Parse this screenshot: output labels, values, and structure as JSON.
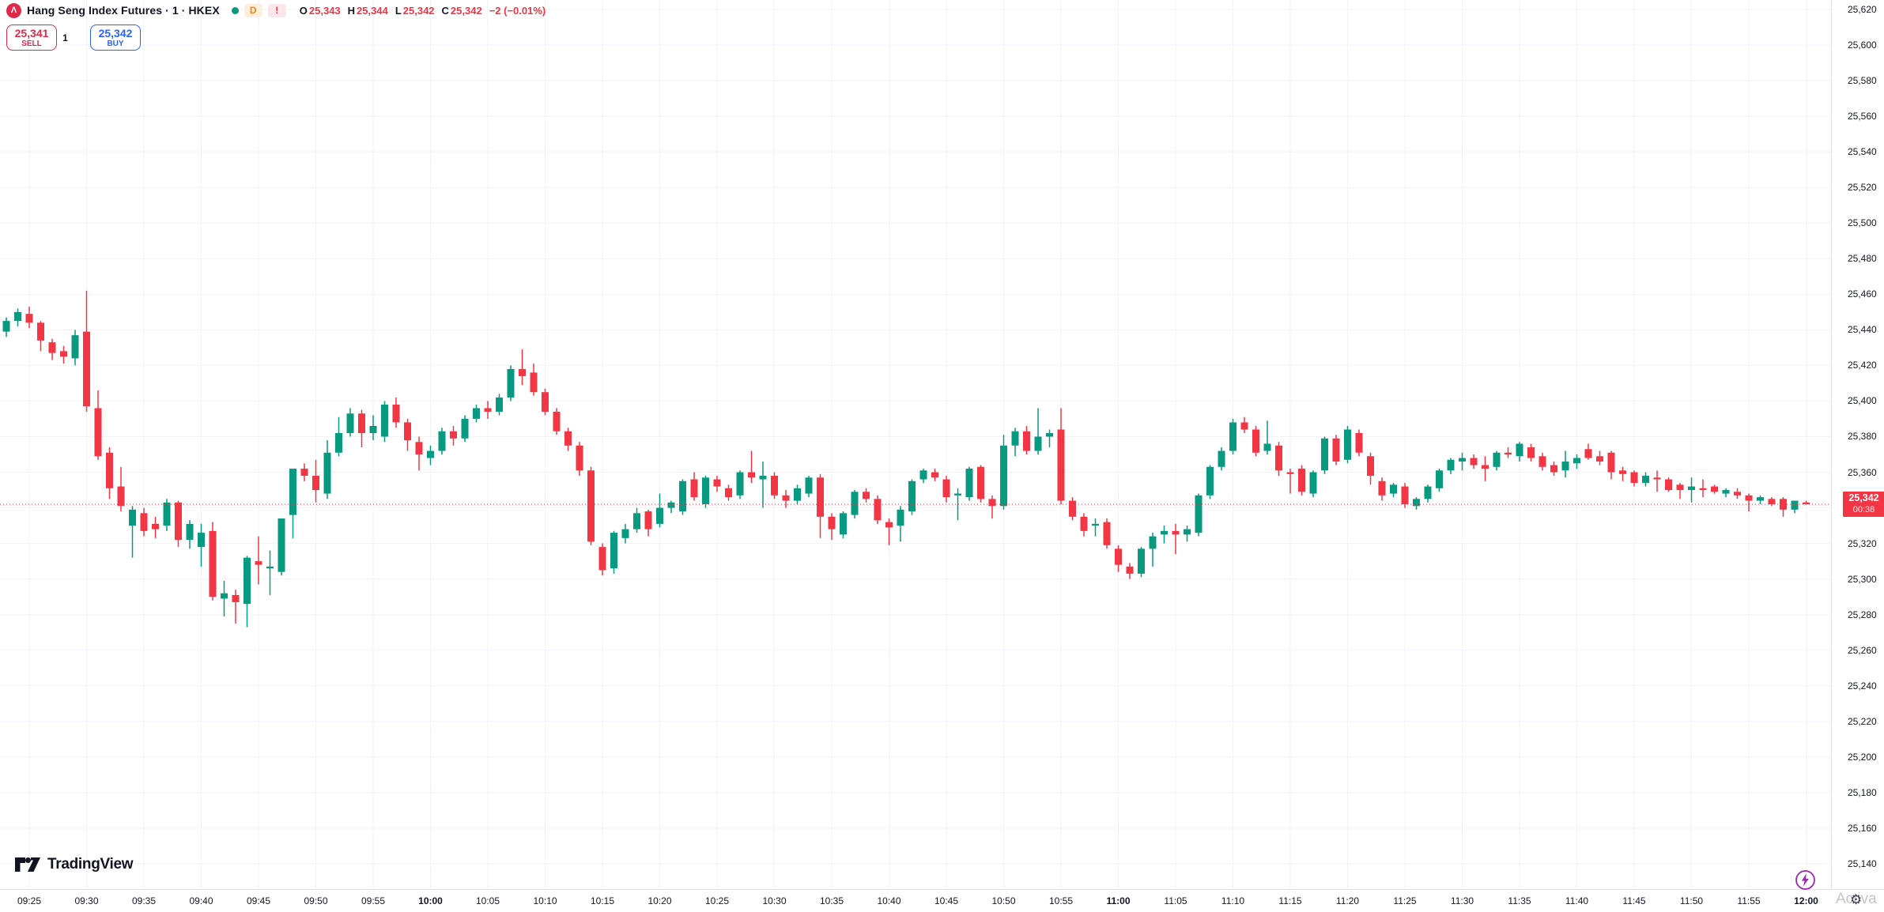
{
  "header": {
    "broker_logo_letter": "Λ",
    "symbol_title": "Hang Seng Index Futures · 1 · HKEX",
    "delayed_badge": "D",
    "alert_badge": "!",
    "ohlc": {
      "o_label": "O",
      "o": "25,343",
      "h_label": "H",
      "h": "25,344",
      "l_label": "L",
      "l": "25,342",
      "c_label": "C",
      "c": "25,342",
      "change": "−2 (−0.01%)"
    },
    "trade": {
      "sell_price": "25,341",
      "sell_label": "SELL",
      "qty": "1",
      "buy_price": "25,342",
      "buy_label": "BUY"
    }
  },
  "footer": {
    "logo_text": "TradingView",
    "activate_text": "Activa"
  },
  "price_axis": {
    "labels": [
      "25,620",
      "25,600",
      "25,580",
      "25,560",
      "25,540",
      "25,520",
      "25,500",
      "25,480",
      "25,460",
      "25,440",
      "25,420",
      "25,400",
      "25,380",
      "25,360",
      "25,340",
      "25,320",
      "25,300",
      "25,280",
      "25,260",
      "25,240",
      "25,220",
      "25,200",
      "25,180",
      "25,160",
      "25,140"
    ],
    "current_price": "25,342",
    "countdown": "00:38"
  },
  "time_axis": {
    "labels": [
      {
        "t": "09:25",
        "bold": false
      },
      {
        "t": "09:30",
        "bold": false
      },
      {
        "t": "09:35",
        "bold": false
      },
      {
        "t": "09:40",
        "bold": false
      },
      {
        "t": "09:45",
        "bold": false
      },
      {
        "t": "09:50",
        "bold": false
      },
      {
        "t": "09:55",
        "bold": false
      },
      {
        "t": "10:00",
        "bold": true
      },
      {
        "t": "10:05",
        "bold": false
      },
      {
        "t": "10:10",
        "bold": false
      },
      {
        "t": "10:15",
        "bold": false
      },
      {
        "t": "10:20",
        "bold": false
      },
      {
        "t": "10:25",
        "bold": false
      },
      {
        "t": "10:30",
        "bold": false
      },
      {
        "t": "10:35",
        "bold": false
      },
      {
        "t": "10:40",
        "bold": false
      },
      {
        "t": "10:45",
        "bold": false
      },
      {
        "t": "10:50",
        "bold": false
      },
      {
        "t": "10:55",
        "bold": false
      },
      {
        "t": "11:00",
        "bold": true
      },
      {
        "t": "11:05",
        "bold": false
      },
      {
        "t": "11:10",
        "bold": false
      },
      {
        "t": "11:15",
        "bold": false
      },
      {
        "t": "11:20",
        "bold": false
      },
      {
        "t": "11:25",
        "bold": false
      },
      {
        "t": "11:30",
        "bold": false
      },
      {
        "t": "11:35",
        "bold": false
      },
      {
        "t": "11:40",
        "bold": false
      },
      {
        "t": "11:45",
        "bold": false
      },
      {
        "t": "11:50",
        "bold": false
      },
      {
        "t": "11:55",
        "bold": false
      },
      {
        "t": "12:00",
        "bold": true
      }
    ]
  },
  "chart_data": {
    "type": "candlestick",
    "title": "Hang Seng Index Futures",
    "exchange": "HKEX",
    "interval": "1",
    "up_color": "#089981",
    "down_color": "#F23645",
    "grid": true,
    "y_axis": {
      "min": 25140,
      "max": 25620,
      "tick_step": 20
    },
    "x_start_time": "09:23",
    "x_end_time": "12:00",
    "current_price": 25342,
    "current_bar": {
      "open": 25343,
      "high": 25344,
      "low": 25342,
      "close": 25342,
      "change": -2,
      "change_pct": -0.01
    },
    "candles": [
      [
        "09:23",
        25439,
        25447,
        25436,
        25445
      ],
      [
        "09:24",
        25445,
        25452,
        25442,
        25450
      ],
      [
        "09:25",
        25449,
        25453,
        25441,
        25444
      ],
      [
        "09:26",
        25444,
        25445,
        25428,
        25434
      ],
      [
        "09:27",
        25433,
        25435,
        25423,
        25427
      ],
      [
        "09:28",
        25428,
        25431,
        25421,
        25425
      ],
      [
        "09:29",
        25424,
        25440,
        25420,
        25437
      ],
      [
        "09:30",
        25439,
        25462,
        25394,
        25397
      ],
      [
        "09:31",
        25396,
        25406,
        25367,
        25369
      ],
      [
        "09:32",
        25371,
        25374,
        25345,
        25351
      ],
      [
        "09:33",
        25352,
        25363,
        25338,
        25341
      ],
      [
        "09:34",
        25330,
        25341,
        25312,
        25339
      ],
      [
        "09:35",
        25337,
        25340,
        25324,
        25327
      ],
      [
        "09:36",
        25331,
        25335,
        25323,
        25328
      ],
      [
        "09:37",
        25330,
        25345,
        25327,
        25343
      ],
      [
        "09:38",
        25343,
        25344,
        25318,
        25322
      ],
      [
        "09:39",
        25322,
        25333,
        25317,
        25331
      ],
      [
        "09:40",
        25318,
        25331,
        25307,
        25326
      ],
      [
        "09:41",
        25327,
        25332,
        25288,
        25290
      ],
      [
        "09:42",
        25289,
        25299,
        25279,
        25292
      ],
      [
        "09:43",
        25291,
        25294,
        25275,
        25287
      ],
      [
        "09:44",
        25286,
        25313,
        25273,
        25312
      ],
      [
        "09:45",
        25310,
        25324,
        25297,
        25308
      ],
      [
        "09:46",
        25306,
        25316,
        25291,
        25307
      ],
      [
        "09:47",
        25304,
        25334,
        25302,
        25334
      ],
      [
        "09:48",
        25336,
        25362,
        25323,
        25362
      ],
      [
        "09:49",
        25362,
        25365,
        25355,
        25358
      ],
      [
        "09:50",
        25358,
        25367,
        25343,
        25350
      ],
      [
        "09:51",
        25348,
        25378,
        25345,
        25371
      ],
      [
        "09:52",
        25371,
        25391,
        25369,
        25382
      ],
      [
        "09:53",
        25382,
        25396,
        25380,
        25393
      ],
      [
        "09:54",
        25393,
        25395,
        25374,
        25382
      ],
      [
        "09:55",
        25382,
        25392,
        25378,
        25386
      ],
      [
        "09:56",
        25380,
        25400,
        25377,
        25398
      ],
      [
        "09:57",
        25398,
        25402,
        25385,
        25388
      ],
      [
        "09:58",
        25388,
        25390,
        25372,
        25378
      ],
      [
        "09:59",
        25377,
        25380,
        25361,
        25370
      ],
      [
        "10:00",
        25368,
        25375,
        25364,
        25372
      ],
      [
        "10:01",
        25372,
        25385,
        25370,
        25383
      ],
      [
        "10:02",
        25383,
        25386,
        25375,
        25379
      ],
      [
        "10:03",
        25379,
        25392,
        25377,
        25390
      ],
      [
        "10:04",
        25390,
        25398,
        25388,
        25396
      ],
      [
        "10:05",
        25396,
        25400,
        25390,
        25394
      ],
      [
        "10:06",
        25394,
        25404,
        25392,
        25402
      ],
      [
        "10:07",
        25402,
        25420,
        25400,
        25418
      ],
      [
        "10:08",
        25418,
        25429,
        25409,
        25414
      ],
      [
        "10:09",
        25416,
        25421,
        25403,
        25405
      ],
      [
        "10:10",
        25405,
        25407,
        25392,
        25394
      ],
      [
        "10:11",
        25394,
        25396,
        25381,
        25383
      ],
      [
        "10:12",
        25383,
        25385,
        25372,
        25375
      ],
      [
        "10:13",
        25375,
        25377,
        25358,
        25361
      ],
      [
        "10:14",
        25361,
        25363,
        25319,
        25321
      ],
      [
        "10:15",
        25318,
        25320,
        25302,
        25305
      ],
      [
        "10:16",
        25306,
        25327,
        25303,
        25326
      ],
      [
        "10:17",
        25323,
        25331,
        25320,
        25328
      ],
      [
        "10:18",
        25328,
        25340,
        25326,
        25337
      ],
      [
        "10:19",
        25338,
        25339,
        25324,
        25328
      ],
      [
        "10:20",
        25331,
        25348,
        25329,
        25340
      ],
      [
        "10:21",
        25340,
        25344,
        25337,
        25343
      ],
      [
        "10:22",
        25338,
        25356,
        25336,
        25355
      ],
      [
        "10:23",
        25356,
        25360,
        25344,
        25346
      ],
      [
        "10:24",
        25342,
        25358,
        25340,
        25357
      ],
      [
        "10:25",
        25356,
        25358,
        25349,
        25352
      ],
      [
        "10:26",
        25351,
        25353,
        25344,
        25346
      ],
      [
        "10:27",
        25347,
        25361,
        25345,
        25360
      ],
      [
        "10:28",
        25360,
        25372,
        25354,
        25357
      ],
      [
        "10:29",
        25356,
        25366,
        25340,
        25358
      ],
      [
        "10:30",
        25358,
        25360,
        25345,
        25347
      ],
      [
        "10:31",
        25347,
        25350,
        25340,
        25344
      ],
      [
        "10:32",
        25344,
        25353,
        25342,
        25351
      ],
      [
        "10:33",
        25348,
        25358,
        25346,
        25357
      ],
      [
        "10:34",
        25357,
        25359,
        25323,
        25335
      ],
      [
        "10:35",
        25335,
        25337,
        25322,
        25328
      ],
      [
        "10:36",
        25325,
        25338,
        25323,
        25337
      ],
      [
        "10:37",
        25336,
        25350,
        25334,
        25349
      ],
      [
        "10:38",
        25349,
        25351,
        25343,
        25345
      ],
      [
        "10:39",
        25345,
        25347,
        25331,
        25333
      ],
      [
        "10:40",
        25332,
        25334,
        25319,
        25329
      ],
      [
        "10:41",
        25330,
        25341,
        25321,
        25339
      ],
      [
        "10:42",
        25338,
        25356,
        25336,
        25355
      ],
      [
        "10:43",
        25356,
        25362,
        25354,
        25361
      ],
      [
        "10:44",
        25360,
        25362,
        25355,
        25357
      ],
      [
        "10:45",
        25356,
        25358,
        25343,
        25346
      ],
      [
        "10:46",
        25347,
        25351,
        25333,
        25348
      ],
      [
        "10:47",
        25346,
        25363,
        25344,
        25362
      ],
      [
        "10:48",
        25363,
        25364,
        25343,
        25345
      ],
      [
        "10:49",
        25345,
        25347,
        25334,
        25341
      ],
      [
        "10:50",
        25341,
        25381,
        25339,
        25375
      ],
      [
        "10:51",
        25375,
        25385,
        25369,
        25383
      ],
      [
        "10:52",
        25383,
        25386,
        25370,
        25372
      ],
      [
        "10:53",
        25372,
        25396,
        25370,
        25380
      ],
      [
        "10:54",
        25380,
        25384,
        25374,
        25382
      ],
      [
        "10:55",
        25384,
        25396,
        25342,
        25344
      ],
      [
        "10:56",
        25344,
        25346,
        25333,
        25335
      ],
      [
        "10:57",
        25335,
        25337,
        25324,
        25327
      ],
      [
        "10:58",
        25330,
        25334,
        25324,
        25331
      ],
      [
        "10:59",
        25332,
        25334,
        25317,
        25319
      ],
      [
        "11:00",
        25317,
        25319,
        25304,
        25308
      ],
      [
        "11:01",
        25307,
        25309,
        25300,
        25303
      ],
      [
        "11:02",
        25303,
        25318,
        25301,
        25317
      ],
      [
        "11:03",
        25317,
        25326,
        25307,
        25324
      ],
      [
        "11:04",
        25325,
        25330,
        25320,
        25327
      ],
      [
        "11:05",
        25327,
        25331,
        25314,
        25325
      ],
      [
        "11:06",
        25325,
        25330,
        25321,
        25328
      ],
      [
        "11:07",
        25326,
        25348,
        25324,
        25347
      ],
      [
        "11:08",
        25347,
        25364,
        25345,
        25363
      ],
      [
        "11:09",
        25363,
        25374,
        25361,
        25372
      ],
      [
        "11:10",
        25372,
        25390,
        25370,
        25388
      ],
      [
        "11:11",
        25388,
        25391,
        25382,
        25384
      ],
      [
        "11:12",
        25384,
        25386,
        25369,
        25371
      ],
      [
        "11:13",
        25372,
        25389,
        25370,
        25376
      ],
      [
        "11:14",
        25375,
        25377,
        25358,
        25361
      ],
      [
        "11:15",
        25360,
        25362,
        25348,
        25359
      ],
      [
        "11:16",
        25362,
        25364,
        25347,
        25349
      ],
      [
        "11:17",
        25348,
        25361,
        25346,
        25360
      ],
      [
        "11:18",
        25361,
        25380,
        25359,
        25379
      ],
      [
        "11:19",
        25379,
        25381,
        25364,
        25366
      ],
      [
        "11:20",
        25367,
        25386,
        25365,
        25384
      ],
      [
        "11:21",
        25382,
        25384,
        25369,
        25371
      ],
      [
        "11:22",
        25369,
        25371,
        25353,
        25358
      ],
      [
        "11:23",
        25355,
        25357,
        25344,
        25347
      ],
      [
        "11:24",
        25348,
        25354,
        25346,
        25353
      ],
      [
        "11:25",
        25352,
        25354,
        25340,
        25342
      ],
      [
        "11:26",
        25341,
        25346,
        25339,
        25345
      ],
      [
        "11:27",
        25345,
        25353,
        25343,
        25352
      ],
      [
        "11:28",
        25351,
        25362,
        25349,
        25361
      ],
      [
        "11:29",
        25361,
        25368,
        25359,
        25367
      ],
      [
        "11:30",
        25366,
        25371,
        25361,
        25368
      ],
      [
        "11:31",
        25368,
        25370,
        25362,
        25364
      ],
      [
        "11:32",
        25364,
        25369,
        25355,
        25362
      ],
      [
        "11:33",
        25363,
        25372,
        25361,
        25371
      ],
      [
        "11:34",
        25371,
        25374,
        25368,
        25370
      ],
      [
        "11:35",
        25369,
        25377,
        25366,
        25376
      ],
      [
        "11:36",
        25374,
        25376,
        25366,
        25368
      ],
      [
        "11:37",
        25369,
        25371,
        25361,
        25363
      ],
      [
        "11:38",
        25364,
        25366,
        25358,
        25360
      ],
      [
        "11:39",
        25361,
        25372,
        25357,
        25366
      ],
      [
        "11:40",
        25365,
        25370,
        25362,
        25368
      ],
      [
        "11:41",
        25373,
        25376,
        25367,
        25368
      ],
      [
        "11:42",
        25369,
        25372,
        25364,
        25366
      ],
      [
        "11:43",
        25371,
        25372,
        25356,
        25360
      ],
      [
        "11:44",
        25361,
        25363,
        25355,
        25359
      ],
      [
        "11:45",
        25360,
        25361,
        25352,
        25354
      ],
      [
        "11:46",
        25354,
        25360,
        25352,
        25358
      ],
      [
        "11:47",
        25357,
        25361,
        25349,
        25356
      ],
      [
        "11:48",
        25356,
        25357,
        25349,
        25350
      ],
      [
        "11:49",
        25353,
        25354,
        25345,
        25350
      ],
      [
        "11:50",
        25350,
        25357,
        25343,
        25352
      ],
      [
        "11:51",
        25351,
        25356,
        25346,
        25350
      ],
      [
        "11:52",
        25352,
        25353,
        25348,
        25349
      ],
      [
        "11:53",
        25348,
        25351,
        25346,
        25350
      ],
      [
        "11:54",
        25349,
        25351,
        25345,
        25347
      ],
      [
        "11:55",
        25347,
        25348,
        25338,
        25344
      ],
      [
        "11:56",
        25344,
        25347,
        25342,
        25346
      ],
      [
        "11:57",
        25345,
        25346,
        25341,
        25342
      ],
      [
        "11:58",
        25345,
        25346,
        25335,
        25339
      ],
      [
        "11:59",
        25339,
        25344,
        25337,
        25344
      ],
      [
        "12:00",
        25343,
        25344,
        25342,
        25342
      ]
    ]
  }
}
